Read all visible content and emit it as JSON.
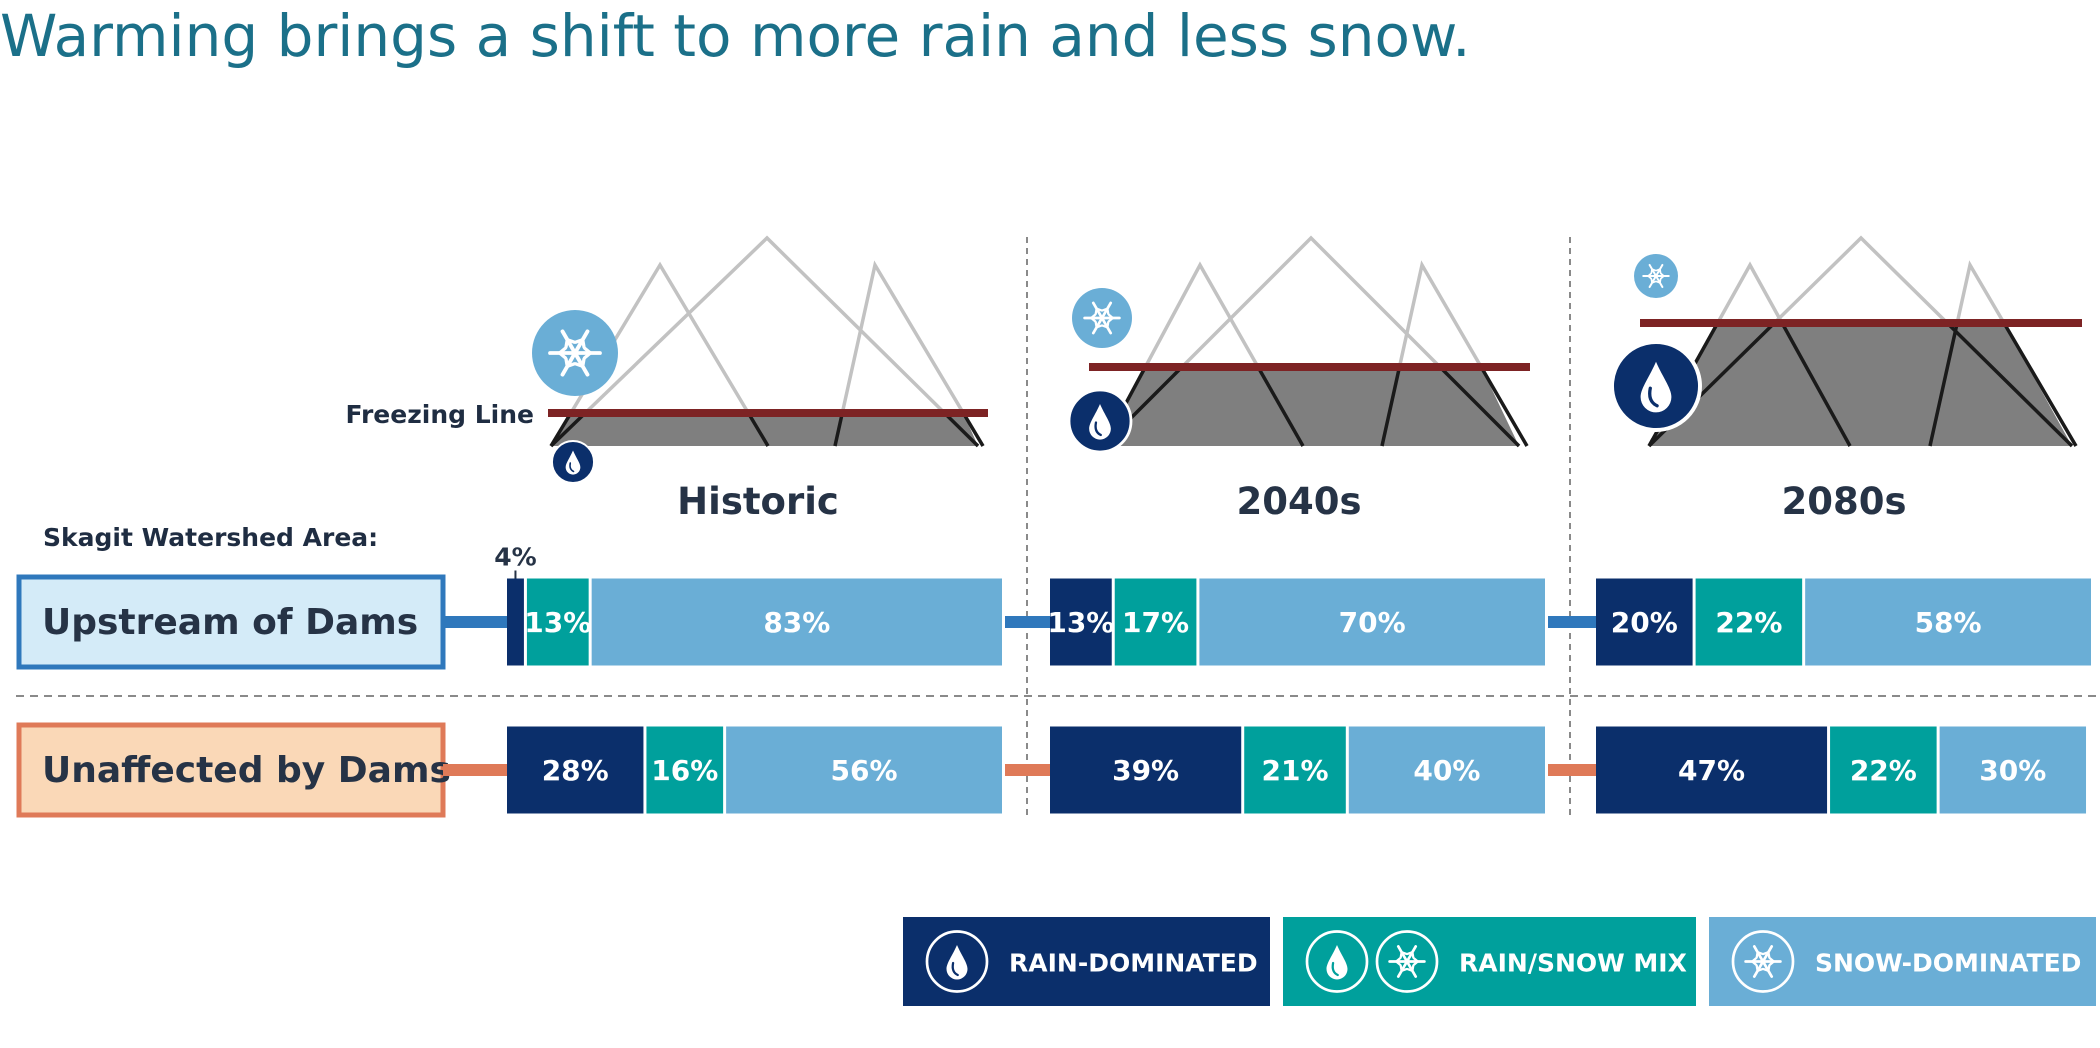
{
  "title": "Warming brings a shift to more rain and less snow.",
  "freezing_line_label": "Freezing Line",
  "area_label": "Skagit Watershed Area:",
  "small_label": "4%",
  "icons": {
    "rain": "water-drop-icon",
    "snow": "snowflake-icon"
  },
  "colors": {
    "title": "#1b7089",
    "rain": "#0b2f6b",
    "mix": "#00a09c",
    "snow": "#6aaed6",
    "freezing_line": "#7d2324",
    "mountain_fill": "#7f7f7f",
    "mountain_outline": "#c2c2c2",
    "upstream_box": "#d4ebf8",
    "upstream_border": "#2f78bc",
    "unaffected_box": "#fad8b7",
    "unaffected_border": "#df7a58",
    "divider": "#8a8a8a"
  },
  "chart_data": {
    "type": "bar",
    "stacked": true,
    "orientation": "horizontal",
    "periods": [
      "Historic",
      "2040s",
      "2080s"
    ],
    "rows": [
      "Upstream of Dams",
      "Unaffected by Dams"
    ],
    "series": [
      {
        "name": "RAIN-DOMINATED",
        "values": {
          "Upstream of Dams": [
            4,
            13,
            20
          ],
          "Unaffected by Dams": [
            28,
            39,
            47
          ]
        }
      },
      {
        "name": "RAIN/SNOW MIX",
        "values": {
          "Upstream of Dams": [
            13,
            17,
            22
          ],
          "Unaffected by Dams": [
            16,
            21,
            22
          ]
        }
      },
      {
        "name": "SNOW-DOMINATED",
        "values": {
          "Upstream of Dams": [
            83,
            70,
            58
          ],
          "Unaffected by Dams": [
            56,
            40,
            30
          ]
        }
      }
    ],
    "unit": "%",
    "legend_position": "bottom-right"
  }
}
